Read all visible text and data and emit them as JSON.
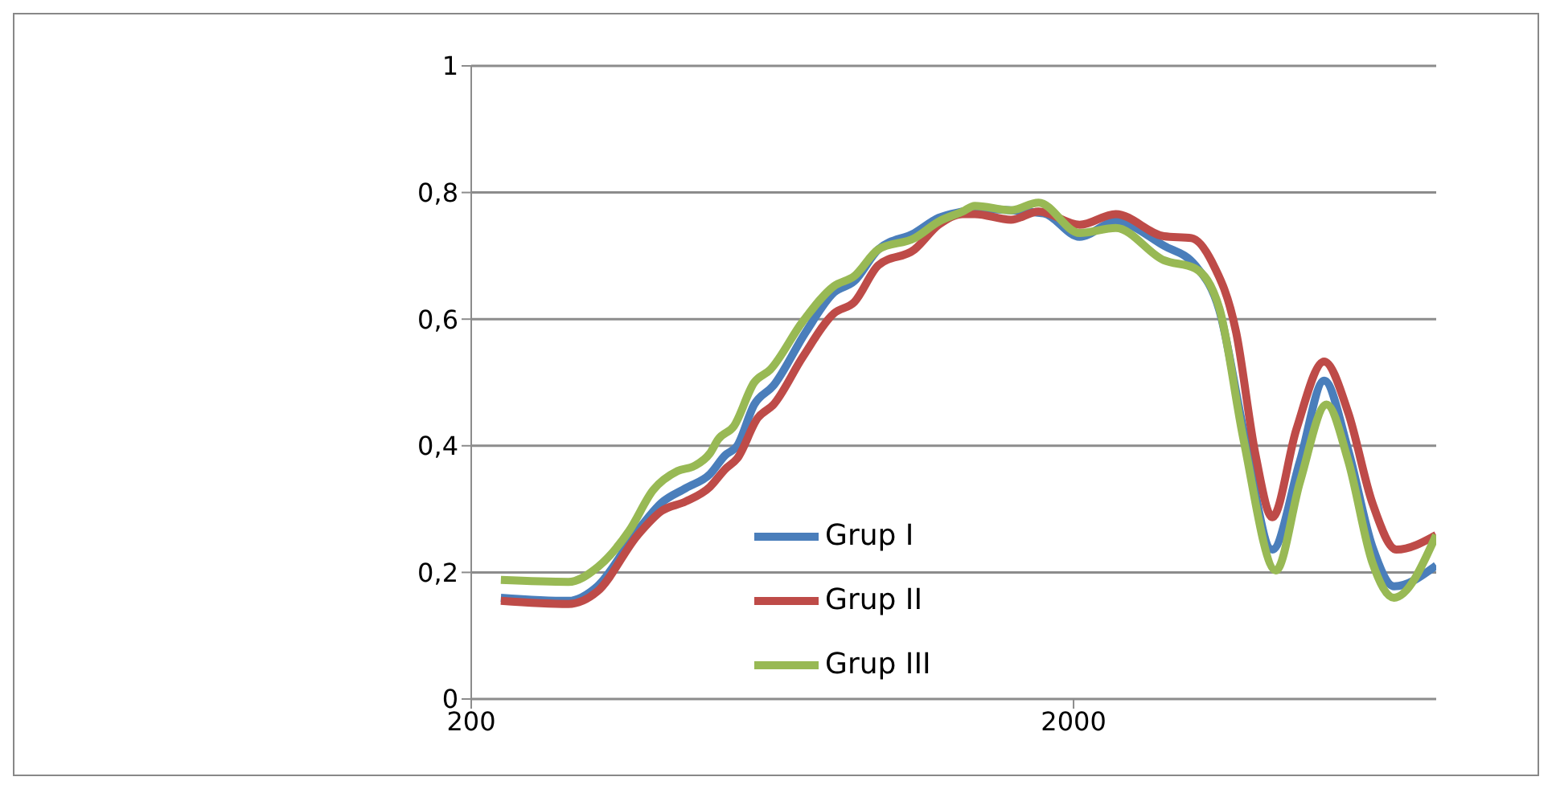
{
  "chart_data": {
    "type": "line",
    "log": "x",
    "xlim": [
      200,
      8000
    ],
    "xticks": [
      200,
      2000
    ],
    "ylim": [
      0,
      1
    ],
    "yticks": [
      0,
      {
        "value": 0.2,
        "label": "0,2"
      },
      {
        "value": 0.4,
        "label": "0,4"
      },
      {
        "value": 0.6,
        "label": "0,6"
      },
      {
        "value": 0.8,
        "label": "0,8"
      },
      1
    ],
    "grid": "y",
    "legend": "bottom",
    "marker": "none",
    "line_style": "solid",
    "series": [
      {
        "name": "Grup I",
        "color": "#4a7ebb",
        "x": [
          224,
          290,
          324,
          378,
          414,
          454,
          498,
          528,
          553,
          590,
          635,
          719,
          800,
          865,
          948,
          1089,
          1194,
          1309,
          1371,
          1783,
          2047,
          2350,
          2825,
          3184,
          3492,
          3828,
          4276,
          4753,
          5212,
          5716,
          6266,
          6808,
          8000
        ],
        "values": [
          0.16,
          0.155,
          0.178,
          0.266,
          0.31,
          0.333,
          0.355,
          0.385,
          0.4,
          0.465,
          0.495,
          0.58,
          0.642,
          0.66,
          0.71,
          0.736,
          0.76,
          0.77,
          0.774,
          0.767,
          0.73,
          0.754,
          0.716,
          0.685,
          0.614,
          0.426,
          0.236,
          0.376,
          0.503,
          0.393,
          0.241,
          0.178,
          0.211
        ]
      },
      {
        "name": "Grup II",
        "color": "#be4b48",
        "x": [
          224,
          290,
          324,
          378,
          414,
          454,
          498,
          528,
          553,
          598,
          635,
          710,
          800,
          865,
          948,
          1089,
          1194,
          1309,
          1371,
          1574,
          1750,
          2047,
          2350,
          2825,
          3140,
          3396,
          3724,
          4009,
          4276,
          4688,
          5212,
          5716,
          6266,
          6871,
          8000
        ],
        "values": [
          0.155,
          0.15,
          0.17,
          0.259,
          0.297,
          0.312,
          0.335,
          0.363,
          0.38,
          0.444,
          0.465,
          0.54,
          0.609,
          0.627,
          0.685,
          0.71,
          0.749,
          0.766,
          0.766,
          0.757,
          0.77,
          0.749,
          0.766,
          0.731,
          0.728,
          0.69,
          0.579,
          0.386,
          0.287,
          0.426,
          0.533,
          0.452,
          0.31,
          0.236,
          0.259
        ]
      },
      {
        "name": "Grup III",
        "color": "#98b954",
        "x": [
          224,
          290,
          324,
          366,
          401,
          440,
          469,
          498,
          514,
          546,
          590,
          627,
          710,
          800,
          865,
          948,
          1089,
          1194,
          1309,
          1371,
          1574,
          1750,
          2047,
          2350,
          2825,
          3184,
          3492,
          3828,
          4335,
          4753,
          5261,
          5716,
          6266,
          6808,
          8000
        ],
        "values": [
          0.188,
          0.185,
          0.208,
          0.266,
          0.33,
          0.36,
          0.368,
          0.388,
          0.41,
          0.431,
          0.5,
          0.52,
          0.596,
          0.652,
          0.668,
          0.71,
          0.728,
          0.754,
          0.77,
          0.779,
          0.772,
          0.784,
          0.736,
          0.744,
          0.693,
          0.68,
          0.617,
          0.411,
          0.203,
          0.343,
          0.465,
          0.376,
          0.216,
          0.16,
          0.259
        ]
      }
    ]
  }
}
